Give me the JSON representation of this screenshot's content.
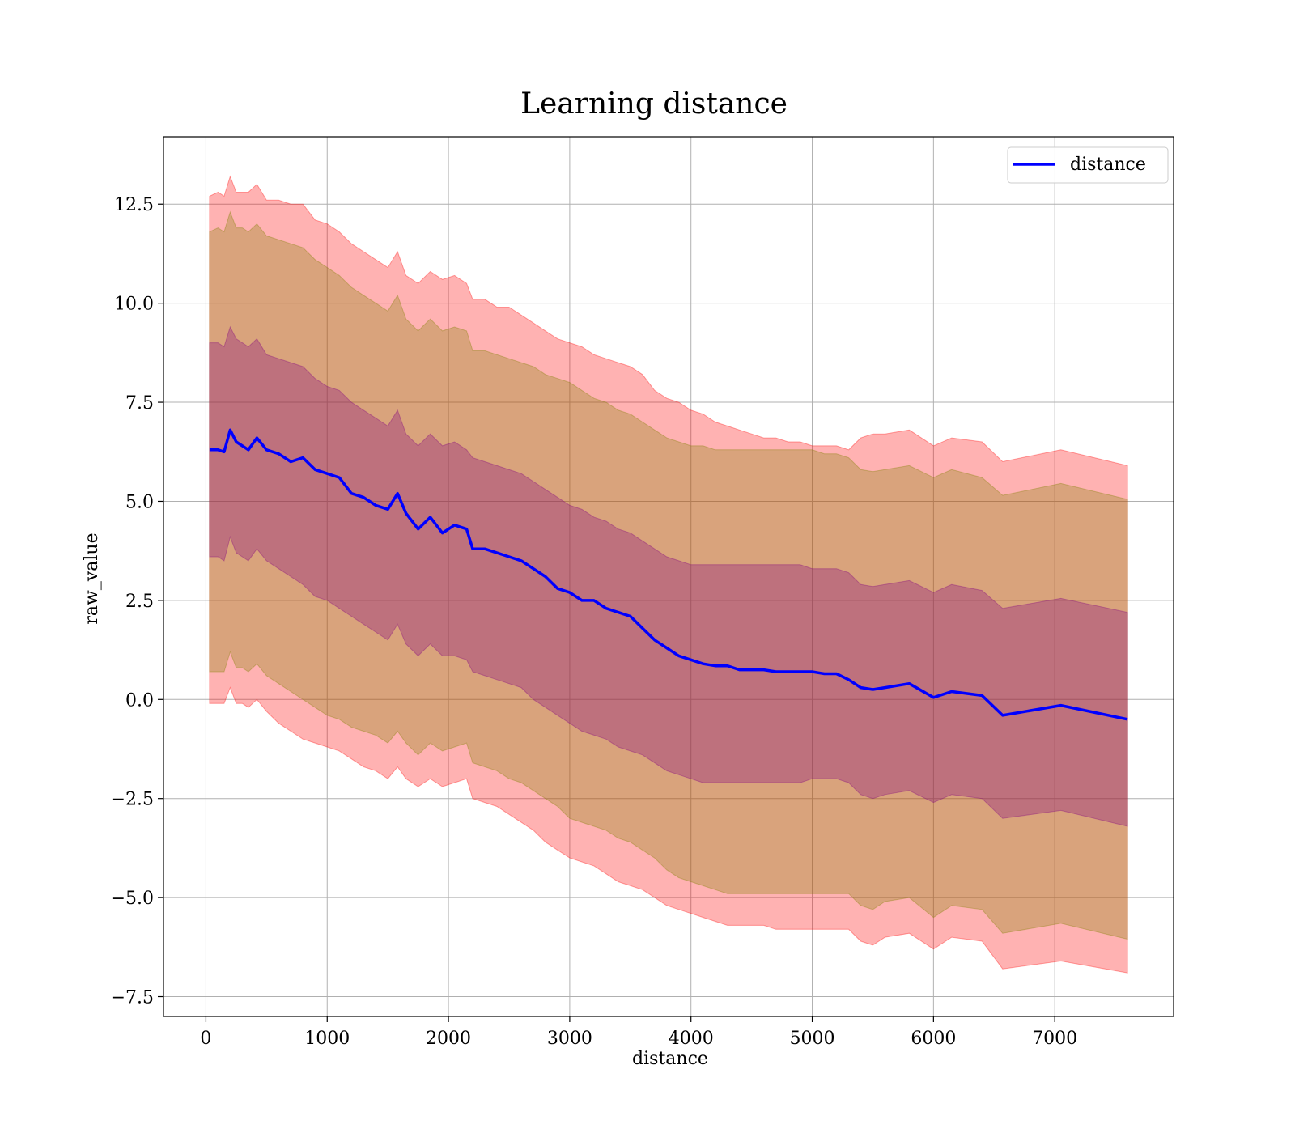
{
  "chart_data": {
    "type": "line",
    "title": "Learning distance",
    "xlabel": "distance",
    "ylabel": "raw_value",
    "xlim": [
      -350,
      7980
    ],
    "ylim": [
      -8.0,
      14.2
    ],
    "xticks": [
      0,
      1000,
      2000,
      3000,
      4000,
      5000,
      6000,
      7000
    ],
    "xtick_labels": [
      "0",
      "1000",
      "2000",
      "3000",
      "4000",
      "5000",
      "6000",
      "7000"
    ],
    "yticks": [
      -7.5,
      -5.0,
      -2.5,
      0.0,
      2.5,
      5.0,
      7.5,
      10.0,
      12.5
    ],
    "ytick_labels": [
      "−7.5",
      "−5.0",
      "−2.5",
      "0.0",
      "2.5",
      "5.0",
      "7.5",
      "10.0",
      "12.5"
    ],
    "grid": true,
    "legend_position": "top-right",
    "colors": {
      "line": "#0000ff",
      "outer_band": "#ff0000",
      "middle_band": "#808000",
      "inner_band": "#800080",
      "grid": "#b0b0b0"
    },
    "band_opacity": {
      "outer": 0.3,
      "middle": 0.3,
      "inner": 0.3
    },
    "series": [
      {
        "name": "distance",
        "x": [
          30,
          100,
          150,
          200,
          250,
          300,
          350,
          420,
          500,
          600,
          700,
          800,
          900,
          1000,
          1100,
          1200,
          1300,
          1400,
          1500,
          1580,
          1650,
          1750,
          1850,
          1950,
          2050,
          2150,
          2200,
          2300,
          2400,
          2500,
          2600,
          2700,
          2800,
          2900,
          3000,
          3100,
          3200,
          3300,
          3400,
          3500,
          3600,
          3700,
          3800,
          3900,
          4000,
          4100,
          4200,
          4300,
          4400,
          4500,
          4600,
          4700,
          4800,
          4900,
          5000,
          5100,
          5200,
          5300,
          5400,
          5500,
          5600,
          5800,
          6000,
          6150,
          6400,
          6570,
          7050,
          7600
        ],
        "values": [
          6.3,
          6.3,
          6.25,
          6.8,
          6.5,
          6.4,
          6.3,
          6.6,
          6.3,
          6.2,
          6.0,
          6.1,
          5.8,
          5.7,
          5.6,
          5.2,
          5.1,
          4.9,
          4.8,
          5.2,
          4.7,
          4.3,
          4.6,
          4.2,
          4.4,
          4.3,
          3.8,
          3.8,
          3.7,
          3.6,
          3.5,
          3.3,
          3.1,
          2.8,
          2.7,
          2.5,
          2.5,
          2.3,
          2.2,
          2.1,
          1.8,
          1.5,
          1.3,
          1.1,
          1.0,
          0.9,
          0.85,
          0.85,
          0.75,
          0.75,
          0.75,
          0.7,
          0.7,
          0.7,
          0.7,
          0.65,
          0.65,
          0.5,
          0.3,
          0.25,
          0.3,
          0.4,
          0.05,
          0.2,
          0.1,
          -0.4,
          -0.15,
          -0.5
        ],
        "outer_upper": [
          12.7,
          12.8,
          12.7,
          13.2,
          12.8,
          12.8,
          12.8,
          13.0,
          12.6,
          12.6,
          12.5,
          12.5,
          12.1,
          12.0,
          11.8,
          11.5,
          11.3,
          11.1,
          10.9,
          11.3,
          10.7,
          10.5,
          10.8,
          10.6,
          10.7,
          10.5,
          10.1,
          10.1,
          9.9,
          9.9,
          9.7,
          9.5,
          9.3,
          9.1,
          9.0,
          8.9,
          8.7,
          8.6,
          8.5,
          8.4,
          8.2,
          7.8,
          7.6,
          7.5,
          7.3,
          7.2,
          7.0,
          6.9,
          6.8,
          6.7,
          6.6,
          6.6,
          6.5,
          6.5,
          6.4,
          6.4,
          6.4,
          6.3,
          6.6,
          6.7,
          6.7,
          6.8,
          6.4,
          6.6,
          6.5,
          6.0,
          6.3,
          5.9
        ],
        "outer_lower": [
          -0.1,
          -0.1,
          -0.1,
          0.3,
          -0.1,
          -0.1,
          -0.2,
          0.0,
          -0.3,
          -0.6,
          -0.8,
          -1.0,
          -1.1,
          -1.2,
          -1.3,
          -1.5,
          -1.7,
          -1.8,
          -2.0,
          -1.7,
          -2.0,
          -2.2,
          -2.0,
          -2.2,
          -2.1,
          -2.0,
          -2.5,
          -2.6,
          -2.7,
          -2.9,
          -3.1,
          -3.3,
          -3.6,
          -3.8,
          -4.0,
          -4.1,
          -4.2,
          -4.4,
          -4.6,
          -4.7,
          -4.8,
          -5.0,
          -5.2,
          -5.3,
          -5.4,
          -5.5,
          -5.6,
          -5.7,
          -5.7,
          -5.7,
          -5.7,
          -5.8,
          -5.8,
          -5.8,
          -5.8,
          -5.8,
          -5.8,
          -5.8,
          -6.1,
          -6.2,
          -6.0,
          -5.9,
          -6.3,
          -6.0,
          -6.1,
          -6.8,
          -6.6,
          -6.9
        ],
        "middle_upper": [
          11.8,
          11.9,
          11.8,
          12.3,
          11.9,
          11.9,
          11.8,
          12.0,
          11.7,
          11.6,
          11.5,
          11.4,
          11.1,
          10.9,
          10.7,
          10.4,
          10.2,
          10.0,
          9.8,
          10.2,
          9.6,
          9.3,
          9.6,
          9.3,
          9.4,
          9.3,
          8.8,
          8.8,
          8.7,
          8.6,
          8.5,
          8.4,
          8.2,
          8.1,
          8.0,
          7.8,
          7.6,
          7.5,
          7.3,
          7.2,
          7.0,
          6.8,
          6.6,
          6.5,
          6.4,
          6.4,
          6.3,
          6.3,
          6.3,
          6.3,
          6.3,
          6.3,
          6.3,
          6.3,
          6.3,
          6.2,
          6.2,
          6.1,
          5.8,
          5.75,
          5.8,
          5.9,
          5.6,
          5.8,
          5.6,
          5.15,
          5.45,
          5.05
        ],
        "middle_lower": [
          0.7,
          0.7,
          0.7,
          1.2,
          0.8,
          0.8,
          0.7,
          0.9,
          0.6,
          0.4,
          0.2,
          0.0,
          -0.2,
          -0.4,
          -0.5,
          -0.7,
          -0.8,
          -0.9,
          -1.1,
          -0.8,
          -1.1,
          -1.4,
          -1.1,
          -1.3,
          -1.2,
          -1.1,
          -1.6,
          -1.7,
          -1.8,
          -2.0,
          -2.1,
          -2.3,
          -2.5,
          -2.7,
          -3.0,
          -3.1,
          -3.2,
          -3.3,
          -3.5,
          -3.6,
          -3.8,
          -4.0,
          -4.3,
          -4.5,
          -4.6,
          -4.7,
          -4.8,
          -4.9,
          -4.9,
          -4.9,
          -4.9,
          -4.9,
          -4.9,
          -4.9,
          -4.9,
          -4.9,
          -4.9,
          -4.9,
          -5.2,
          -5.3,
          -5.1,
          -5.0,
          -5.5,
          -5.2,
          -5.3,
          -5.9,
          -5.65,
          -6.05
        ],
        "inner_upper": [
          9.0,
          9.0,
          8.9,
          9.4,
          9.1,
          9.0,
          8.9,
          9.1,
          8.7,
          8.6,
          8.5,
          8.4,
          8.1,
          7.9,
          7.8,
          7.5,
          7.3,
          7.1,
          6.9,
          7.3,
          6.7,
          6.4,
          6.7,
          6.4,
          6.5,
          6.3,
          6.1,
          6.0,
          5.9,
          5.8,
          5.7,
          5.5,
          5.3,
          5.1,
          4.9,
          4.8,
          4.6,
          4.5,
          4.3,
          4.2,
          4.0,
          3.8,
          3.6,
          3.5,
          3.4,
          3.4,
          3.4,
          3.4,
          3.4,
          3.4,
          3.4,
          3.4,
          3.4,
          3.4,
          3.3,
          3.3,
          3.3,
          3.2,
          2.9,
          2.85,
          2.9,
          3.0,
          2.7,
          2.9,
          2.75,
          2.3,
          2.55,
          2.2
        ],
        "inner_lower": [
          3.6,
          3.6,
          3.5,
          4.1,
          3.7,
          3.6,
          3.5,
          3.8,
          3.5,
          3.3,
          3.1,
          2.9,
          2.6,
          2.5,
          2.3,
          2.1,
          1.9,
          1.7,
          1.5,
          1.9,
          1.4,
          1.1,
          1.4,
          1.1,
          1.1,
          1.0,
          0.7,
          0.6,
          0.5,
          0.4,
          0.3,
          0.0,
          -0.2,
          -0.4,
          -0.6,
          -0.8,
          -0.9,
          -1.0,
          -1.2,
          -1.3,
          -1.4,
          -1.6,
          -1.8,
          -1.9,
          -2.0,
          -2.1,
          -2.1,
          -2.1,
          -2.1,
          -2.1,
          -2.1,
          -2.1,
          -2.1,
          -2.1,
          -2.0,
          -2.0,
          -2.0,
          -2.1,
          -2.4,
          -2.5,
          -2.4,
          -2.3,
          -2.6,
          -2.4,
          -2.5,
          -3.0,
          -2.8,
          -3.2
        ]
      }
    ]
  }
}
